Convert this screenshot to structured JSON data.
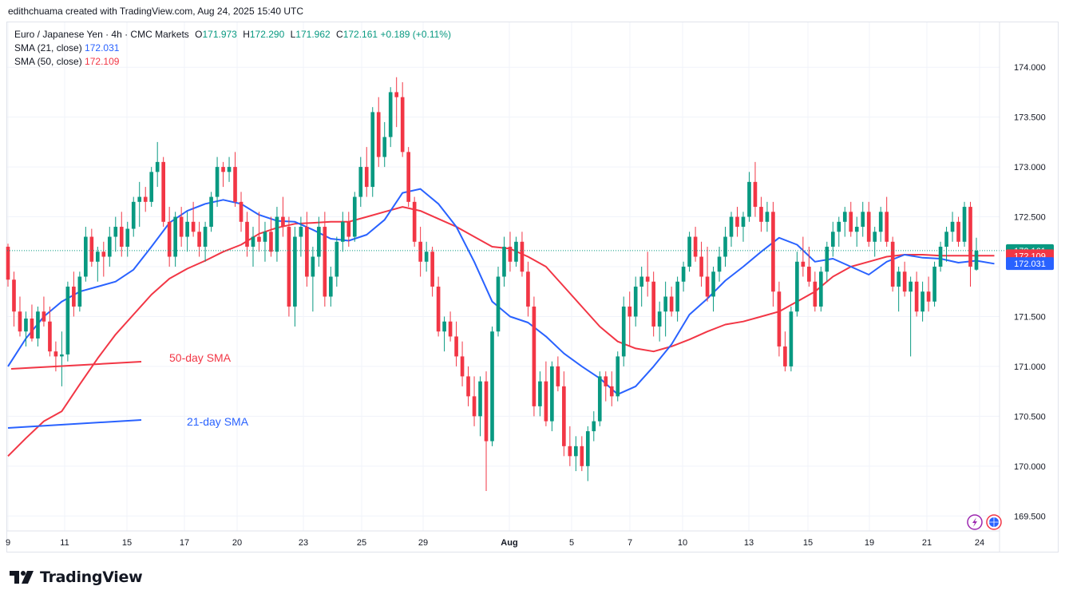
{
  "header": {
    "attribution": "edithchuama created with TradingView.com, Aug 24, 2025 15:40 UTC"
  },
  "legend": {
    "symbol": "Euro / Japanese Yen · 4h · CMC Markets",
    "open_label": "O",
    "open": "171.973",
    "high_label": "H",
    "high": "172.290",
    "low_label": "L",
    "low": "171.962",
    "close_label": "C",
    "close": "172.161",
    "change": "+0.189 (+0.11%)",
    "sma21_label": "SMA (21, close)",
    "sma21_value": "172.031",
    "sma50_label": "SMA (50, close)",
    "sma50_value": "172.109"
  },
  "price_badges": {
    "last": "172.161",
    "sma50": "172.109",
    "sma21": "172.031"
  },
  "annotations": {
    "sma50_text": "50-day SMA",
    "sma21_text": "21-day SMA"
  },
  "branding": {
    "logo_text": "TradingView"
  },
  "colors": {
    "up": "#089981",
    "down": "#f23645",
    "sma21": "#2962ff",
    "sma50": "#f23645"
  },
  "chart_data": {
    "type": "candlestick",
    "symbol": "EURJPY",
    "timeframe": "4h",
    "ylim": [
      169.35,
      174.45
    ],
    "y_ticks": [
      "174.000",
      "173.500",
      "173.000",
      "172.500",
      "172.000",
      "171.500",
      "171.000",
      "170.500",
      "170.000",
      "169.500"
    ],
    "x_ticks": [
      "9",
      "11",
      "15",
      "17",
      "20",
      "23",
      "25",
      "29",
      "Aug",
      "5",
      "7",
      "10",
      "13",
      "15",
      "19",
      "21",
      "24"
    ],
    "grid": true,
    "last_price": 172.161,
    "candles": [
      [
        172.2,
        172.23,
        171.8,
        171.87
      ],
      [
        171.87,
        171.95,
        171.4,
        171.55
      ],
      [
        171.55,
        171.7,
        171.3,
        171.35
      ],
      [
        171.35,
        171.55,
        171.2,
        171.48
      ],
      [
        171.48,
        171.62,
        171.25,
        171.28
      ],
      [
        171.28,
        171.6,
        171.2,
        171.55
      ],
      [
        171.55,
        171.7,
        171.4,
        171.45
      ],
      [
        171.45,
        171.6,
        171.1,
        171.15
      ],
      [
        171.15,
        171.25,
        170.95,
        171.1
      ],
      [
        171.1,
        171.35,
        170.8,
        171.12
      ],
      [
        171.12,
        171.85,
        171.05,
        171.8
      ],
      [
        171.8,
        171.95,
        171.5,
        171.6
      ],
      [
        171.6,
        171.95,
        171.55,
        171.9
      ],
      [
        171.9,
        172.4,
        171.85,
        172.3
      ],
      [
        172.3,
        172.38,
        172.0,
        172.05
      ],
      [
        172.05,
        172.2,
        171.85,
        172.15
      ],
      [
        172.15,
        172.25,
        171.9,
        172.1
      ],
      [
        172.1,
        172.4,
        172.0,
        172.3
      ],
      [
        172.3,
        172.5,
        172.15,
        172.4
      ],
      [
        172.4,
        172.55,
        172.1,
        172.2
      ],
      [
        172.2,
        172.45,
        172.1,
        172.38
      ],
      [
        172.38,
        172.7,
        172.3,
        172.65
      ],
      [
        172.65,
        172.85,
        172.4,
        172.7
      ],
      [
        172.7,
        172.8,
        172.55,
        172.65
      ],
      [
        172.65,
        173.0,
        172.6,
        172.95
      ],
      [
        172.95,
        173.25,
        172.8,
        173.05
      ],
      [
        173.05,
        173.1,
        172.4,
        172.45
      ],
      [
        172.45,
        172.6,
        172.0,
        172.1
      ],
      [
        172.1,
        172.55,
        172.0,
        172.5
      ],
      [
        172.5,
        172.6,
        172.2,
        172.3
      ],
      [
        172.3,
        172.55,
        172.15,
        172.45
      ],
      [
        172.45,
        172.65,
        172.3,
        172.35
      ],
      [
        172.35,
        172.45,
        172.1,
        172.2
      ],
      [
        172.2,
        172.45,
        172.05,
        172.4
      ],
      [
        172.4,
        172.75,
        172.35,
        172.7
      ],
      [
        172.7,
        173.1,
        172.6,
        173.0
      ],
      [
        173.0,
        173.05,
        172.8,
        172.95
      ],
      [
        172.95,
        173.1,
        172.85,
        173.0
      ],
      [
        173.0,
        173.15,
        172.6,
        172.65
      ],
      [
        172.65,
        172.75,
        172.35,
        172.45
      ],
      [
        172.45,
        172.55,
        172.1,
        172.2
      ],
      [
        172.2,
        172.4,
        172.0,
        172.3
      ],
      [
        172.3,
        172.55,
        172.15,
        172.25
      ],
      [
        172.25,
        172.45,
        172.05,
        172.35
      ],
      [
        172.35,
        172.5,
        172.1,
        172.15
      ],
      [
        172.15,
        172.6,
        172.05,
        172.5
      ],
      [
        172.5,
        172.7,
        172.3,
        172.4
      ],
      [
        172.4,
        172.5,
        171.5,
        171.6
      ],
      [
        171.6,
        172.4,
        171.4,
        172.3
      ],
      [
        172.3,
        172.5,
        172.1,
        172.4
      ],
      [
        172.4,
        172.55,
        171.8,
        171.9
      ],
      [
        171.9,
        172.2,
        171.55,
        172.1
      ],
      [
        172.1,
        172.5,
        172.0,
        172.4
      ],
      [
        172.4,
        172.55,
        171.6,
        171.7
      ],
      [
        171.7,
        172.0,
        171.6,
        171.9
      ],
      [
        171.9,
        172.3,
        171.8,
        172.25
      ],
      [
        172.25,
        172.55,
        172.15,
        172.45
      ],
      [
        172.45,
        172.55,
        172.2,
        172.3
      ],
      [
        172.3,
        172.75,
        172.25,
        172.7
      ],
      [
        172.7,
        173.1,
        172.6,
        173.0
      ],
      [
        173.0,
        173.2,
        172.7,
        172.8
      ],
      [
        172.8,
        173.6,
        172.7,
        173.55
      ],
      [
        173.55,
        173.7,
        173.0,
        173.1
      ],
      [
        173.1,
        173.45,
        173.0,
        173.3
      ],
      [
        173.3,
        173.8,
        173.2,
        173.75
      ],
      [
        173.75,
        173.9,
        173.4,
        173.7
      ],
      [
        173.7,
        173.85,
        173.1,
        173.15
      ],
      [
        173.15,
        173.2,
        172.6,
        172.65
      ],
      [
        172.65,
        172.7,
        172.2,
        172.25
      ],
      [
        172.25,
        172.4,
        171.9,
        172.05
      ],
      [
        172.05,
        172.25,
        171.95,
        172.15
      ],
      [
        172.15,
        172.2,
        171.7,
        171.8
      ],
      [
        171.8,
        171.9,
        171.3,
        171.35
      ],
      [
        171.35,
        171.5,
        171.15,
        171.45
      ],
      [
        171.45,
        171.55,
        171.25,
        171.3
      ],
      [
        171.3,
        171.45,
        171.0,
        171.1
      ],
      [
        171.1,
        171.25,
        170.8,
        170.9
      ],
      [
        170.9,
        171.0,
        170.6,
        170.7
      ],
      [
        170.7,
        170.9,
        170.4,
        170.5
      ],
      [
        170.5,
        170.9,
        170.3,
        170.85
      ],
      [
        170.85,
        170.95,
        169.75,
        170.25
      ],
      [
        170.25,
        171.4,
        170.2,
        171.35
      ],
      [
        171.35,
        172.0,
        171.3,
        171.9
      ],
      [
        171.9,
        172.3,
        171.8,
        172.2
      ],
      [
        172.2,
        172.35,
        171.95,
        172.05
      ],
      [
        172.05,
        172.3,
        172.0,
        172.25
      ],
      [
        172.25,
        172.35,
        171.9,
        171.95
      ],
      [
        171.95,
        172.05,
        171.5,
        171.6
      ],
      [
        171.6,
        171.7,
        170.5,
        170.6
      ],
      [
        170.6,
        170.95,
        170.5,
        170.85
      ],
      [
        170.85,
        171.05,
        170.4,
        170.45
      ],
      [
        170.45,
        171.05,
        170.35,
        171.0
      ],
      [
        171.0,
        171.1,
        170.75,
        170.8
      ],
      [
        170.8,
        170.95,
        170.1,
        170.2
      ],
      [
        170.2,
        170.4,
        170.0,
        170.1
      ],
      [
        170.1,
        170.3,
        169.95,
        170.2
      ],
      [
        170.2,
        170.3,
        169.95,
        170.0
      ],
      [
        170.0,
        170.4,
        169.85,
        170.35
      ],
      [
        170.35,
        170.55,
        170.25,
        170.45
      ],
      [
        170.45,
        170.95,
        170.4,
        170.9
      ],
      [
        170.9,
        170.95,
        170.65,
        170.8
      ],
      [
        170.8,
        170.95,
        170.6,
        170.7
      ],
      [
        170.7,
        171.15,
        170.65,
        171.1
      ],
      [
        171.1,
        171.7,
        171.0,
        171.6
      ],
      [
        171.6,
        171.75,
        171.2,
        171.5
      ],
      [
        171.5,
        171.9,
        171.4,
        171.8
      ],
      [
        171.8,
        172.0,
        171.6,
        171.9
      ],
      [
        171.9,
        172.15,
        171.7,
        171.85
      ],
      [
        171.85,
        171.95,
        171.3,
        171.4
      ],
      [
        171.4,
        171.65,
        171.25,
        171.55
      ],
      [
        171.55,
        171.85,
        171.3,
        171.7
      ],
      [
        171.7,
        171.8,
        171.5,
        171.55
      ],
      [
        171.55,
        171.9,
        171.45,
        171.85
      ],
      [
        171.85,
        172.05,
        171.75,
        172.0
      ],
      [
        172.0,
        172.35,
        171.95,
        172.3
      ],
      [
        172.3,
        172.4,
        172.05,
        172.1
      ],
      [
        172.1,
        172.25,
        171.8,
        171.9
      ],
      [
        171.9,
        172.2,
        171.65,
        171.7
      ],
      [
        171.7,
        172.0,
        171.55,
        171.95
      ],
      [
        171.95,
        172.2,
        171.85,
        172.1
      ],
      [
        172.1,
        172.4,
        172.0,
        172.3
      ],
      [
        172.3,
        172.55,
        172.2,
        172.5
      ],
      [
        172.5,
        172.6,
        172.3,
        172.4
      ],
      [
        172.4,
        172.55,
        172.25,
        172.5
      ],
      [
        172.5,
        172.95,
        172.45,
        172.85
      ],
      [
        172.85,
        173.05,
        172.5,
        172.6
      ],
      [
        172.6,
        172.7,
        172.35,
        172.45
      ],
      [
        172.45,
        172.65,
        172.35,
        172.55
      ],
      [
        172.55,
        172.65,
        171.6,
        171.75
      ],
      [
        171.75,
        171.85,
        171.1,
        171.2
      ],
      [
        171.2,
        171.35,
        170.95,
        171.0
      ],
      [
        171.0,
        171.6,
        170.95,
        171.55
      ],
      [
        171.55,
        172.15,
        171.5,
        172.05
      ],
      [
        172.05,
        172.3,
        171.9,
        172.0
      ],
      [
        172.0,
        172.2,
        171.8,
        171.85
      ],
      [
        171.85,
        171.95,
        171.55,
        171.6
      ],
      [
        171.6,
        172.0,
        171.55,
        171.95
      ],
      [
        171.95,
        172.25,
        171.85,
        172.2
      ],
      [
        172.2,
        172.45,
        172.1,
        172.35
      ],
      [
        172.35,
        172.5,
        172.2,
        172.45
      ],
      [
        172.45,
        172.6,
        172.3,
        172.55
      ],
      [
        172.55,
        172.65,
        172.3,
        172.35
      ],
      [
        172.35,
        172.5,
        172.2,
        172.4
      ],
      [
        172.4,
        172.65,
        172.3,
        172.55
      ],
      [
        172.55,
        172.65,
        172.2,
        172.25
      ],
      [
        172.25,
        172.4,
        172.1,
        172.35
      ],
      [
        172.35,
        172.6,
        172.25,
        172.55
      ],
      [
        172.55,
        172.7,
        172.2,
        172.25
      ],
      [
        172.25,
        172.3,
        171.75,
        171.8
      ],
      [
        171.8,
        172.0,
        171.55,
        171.95
      ],
      [
        171.95,
        172.05,
        171.7,
        171.75
      ],
      [
        171.75,
        171.9,
        171.1,
        171.85
      ],
      [
        171.85,
        171.95,
        171.5,
        171.55
      ],
      [
        171.55,
        171.85,
        171.45,
        171.75
      ],
      [
        171.75,
        171.9,
        171.55,
        171.65
      ],
      [
        171.65,
        172.05,
        171.6,
        172.0
      ],
      [
        172.0,
        172.25,
        171.95,
        172.2
      ],
      [
        172.2,
        172.4,
        172.05,
        172.35
      ],
      [
        172.35,
        172.55,
        172.25,
        172.45
      ],
      [
        172.45,
        172.5,
        172.2,
        172.25
      ],
      [
        172.25,
        172.65,
        172.2,
        172.6
      ],
      [
        172.6,
        172.65,
        171.8,
        172.0
      ],
      [
        171.97,
        172.29,
        171.96,
        172.16
      ]
    ],
    "sma21": [
      [
        0,
        171.0
      ],
      [
        3,
        171.28
      ],
      [
        6,
        171.5
      ],
      [
        9,
        171.65
      ],
      [
        12,
        171.75
      ],
      [
        15,
        171.8
      ],
      [
        18,
        171.85
      ],
      [
        21,
        171.97
      ],
      [
        24,
        172.2
      ],
      [
        27,
        172.44
      ],
      [
        30,
        172.56
      ],
      [
        33,
        172.63
      ],
      [
        36,
        172.67
      ],
      [
        39,
        172.63
      ],
      [
        42,
        172.52
      ],
      [
        45,
        172.46
      ],
      [
        48,
        172.45
      ],
      [
        51,
        172.37
      ],
      [
        54,
        172.28
      ],
      [
        57,
        172.26
      ],
      [
        60,
        172.32
      ],
      [
        63,
        172.47
      ],
      [
        66,
        172.74
      ],
      [
        69,
        172.78
      ],
      [
        72,
        172.63
      ],
      [
        75,
        172.4
      ],
      [
        78,
        172.05
      ],
      [
        81,
        171.65
      ],
      [
        84,
        171.5
      ],
      [
        87,
        171.44
      ],
      [
        90,
        171.3
      ],
      [
        93,
        171.13
      ],
      [
        96,
        171.0
      ],
      [
        99,
        170.88
      ],
      [
        102,
        170.72
      ],
      [
        105,
        170.8
      ],
      [
        108,
        171.0
      ],
      [
        111,
        171.22
      ],
      [
        114,
        171.52
      ],
      [
        117,
        171.68
      ],
      [
        120,
        171.86
      ],
      [
        123,
        172.0
      ],
      [
        126,
        172.15
      ],
      [
        129,
        172.29
      ],
      [
        132,
        172.22
      ],
      [
        135,
        172.05
      ],
      [
        138,
        172.08
      ],
      [
        141,
        172.0
      ],
      [
        144,
        171.92
      ],
      [
        147,
        172.05
      ],
      [
        150,
        172.12
      ],
      [
        153,
        172.09
      ],
      [
        156,
        172.08
      ],
      [
        159,
        172.04
      ],
      [
        162,
        172.06
      ],
      [
        165,
        172.03
      ]
    ],
    "sma50": [
      [
        0,
        170.1
      ],
      [
        3,
        170.28
      ],
      [
        6,
        170.45
      ],
      [
        9,
        170.55
      ],
      [
        12,
        170.82
      ],
      [
        15,
        171.08
      ],
      [
        18,
        171.32
      ],
      [
        21,
        171.52
      ],
      [
        24,
        171.72
      ],
      [
        27,
        171.88
      ],
      [
        30,
        171.98
      ],
      [
        33,
        172.06
      ],
      [
        36,
        172.15
      ],
      [
        39,
        172.22
      ],
      [
        42,
        172.33
      ],
      [
        45,
        172.39
      ],
      [
        48,
        172.43
      ],
      [
        51,
        172.44
      ],
      [
        54,
        172.45
      ],
      [
        57,
        172.45
      ],
      [
        60,
        172.5
      ],
      [
        63,
        172.55
      ],
      [
        66,
        172.6
      ],
      [
        69,
        172.56
      ],
      [
        72,
        172.48
      ],
      [
        75,
        172.4
      ],
      [
        78,
        172.3
      ],
      [
        81,
        172.2
      ],
      [
        84,
        172.18
      ],
      [
        87,
        172.1
      ],
      [
        90,
        172.0
      ],
      [
        93,
        171.8
      ],
      [
        96,
        171.6
      ],
      [
        99,
        171.4
      ],
      [
        102,
        171.25
      ],
      [
        105,
        171.18
      ],
      [
        108,
        171.15
      ],
      [
        111,
        171.2
      ],
      [
        114,
        171.27
      ],
      [
        117,
        171.35
      ],
      [
        120,
        171.42
      ],
      [
        123,
        171.45
      ],
      [
        126,
        171.5
      ],
      [
        129,
        171.55
      ],
      [
        132,
        171.65
      ],
      [
        135,
        171.75
      ],
      [
        138,
        171.9
      ],
      [
        141,
        172.0
      ],
      [
        144,
        172.05
      ],
      [
        147,
        172.1
      ],
      [
        150,
        172.12
      ],
      [
        153,
        172.12
      ],
      [
        156,
        172.11
      ],
      [
        159,
        172.11
      ],
      [
        162,
        172.11
      ],
      [
        165,
        172.11
      ]
    ]
  }
}
